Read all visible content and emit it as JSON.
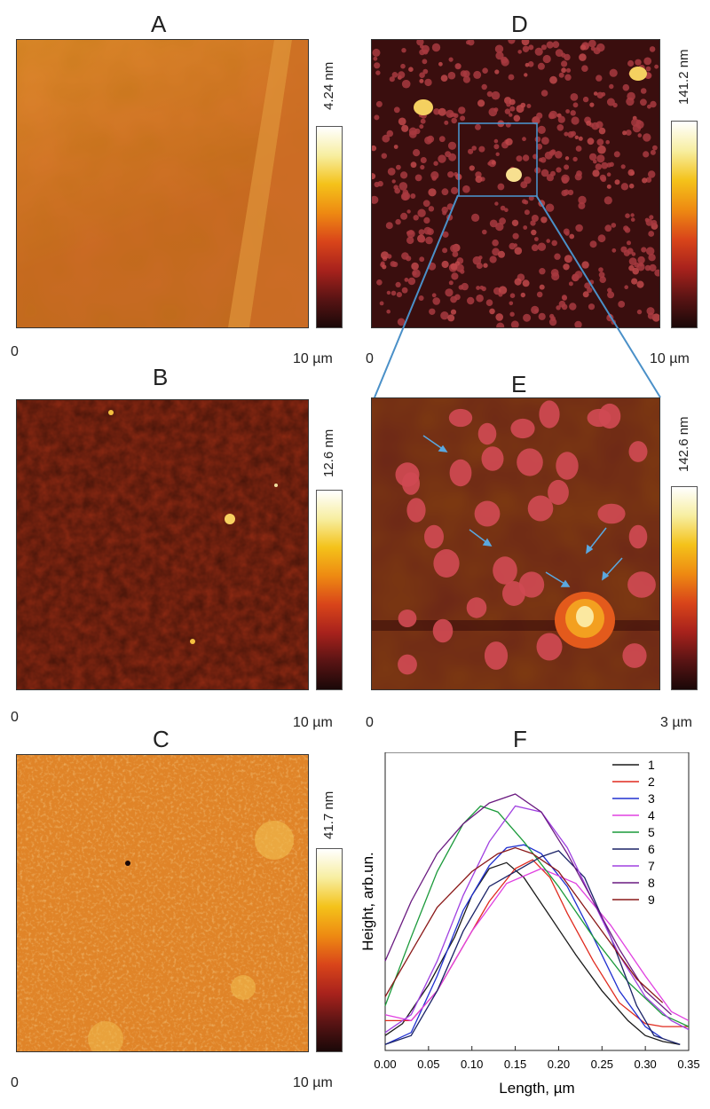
{
  "panels": {
    "a": {
      "letter": "A",
      "scale_label": "4.24 nm",
      "x_start": "0",
      "x_end": "10 µm"
    },
    "b": {
      "letter": "B",
      "scale_label": "12.6 nm",
      "x_start": "0",
      "x_end": "10 µm"
    },
    "c": {
      "letter": "C",
      "scale_label": "41.7 nm",
      "x_start": "0",
      "x_end": "10 µm"
    },
    "d": {
      "letter": "D",
      "scale_label": "141.2 nm",
      "x_start": "0",
      "x_end": "10 µm"
    },
    "e": {
      "letter": "E",
      "scale_label": "142.6 nm",
      "x_start": "0",
      "x_end": "3 µm"
    },
    "f": {
      "letter": "F"
    }
  },
  "colors": {
    "inset_lines": "#4a90c8",
    "colormap": [
      "#1a0808",
      "#5a1414",
      "#a8221c",
      "#d9451a",
      "#ee8a12",
      "#f4c21a",
      "#f7eea0",
      "#ffffff"
    ]
  },
  "chart_data": {
    "type": "line",
    "xlabel": "Length, µm",
    "ylabel": "Height, arb.un.",
    "xlim": [
      0,
      0.35
    ],
    "x_ticks": [
      "0.00",
      "0.05",
      "0.10",
      "0.15",
      "0.20",
      "0.25",
      "0.30",
      "0.35"
    ],
    "y_unit": "arbitrary",
    "legend_position": "top-right",
    "series": [
      {
        "name": "1",
        "color": "#1a1a1a",
        "x": [
          0.0,
          0.02,
          0.05,
          0.08,
          0.1,
          0.12,
          0.14,
          0.16,
          0.19,
          0.22,
          0.25,
          0.28,
          0.3,
          0.32,
          0.34
        ],
        "y": [
          0.05,
          0.09,
          0.22,
          0.38,
          0.52,
          0.61,
          0.63,
          0.58,
          0.45,
          0.32,
          0.2,
          0.1,
          0.05,
          0.03,
          0.02
        ]
      },
      {
        "name": "2",
        "color": "#e02a1e",
        "x": [
          0.0,
          0.03,
          0.06,
          0.09,
          0.12,
          0.15,
          0.17,
          0.19,
          0.21,
          0.24,
          0.27,
          0.3,
          0.32,
          0.35
        ],
        "y": [
          0.1,
          0.1,
          0.2,
          0.35,
          0.5,
          0.61,
          0.64,
          0.58,
          0.46,
          0.3,
          0.16,
          0.09,
          0.08,
          0.08
        ]
      },
      {
        "name": "3",
        "color": "#2030d0",
        "x": [
          0.0,
          0.03,
          0.06,
          0.09,
          0.12,
          0.14,
          0.16,
          0.18,
          0.21,
          0.24,
          0.27,
          0.3,
          0.32
        ],
        "y": [
          0.02,
          0.06,
          0.25,
          0.47,
          0.62,
          0.68,
          0.69,
          0.66,
          0.55,
          0.38,
          0.2,
          0.08,
          0.04
        ]
      },
      {
        "name": "4",
        "color": "#e040e0",
        "x": [
          0.0,
          0.03,
          0.06,
          0.1,
          0.14,
          0.18,
          0.22,
          0.26,
          0.3,
          0.33,
          0.35
        ],
        "y": [
          0.12,
          0.1,
          0.2,
          0.4,
          0.56,
          0.61,
          0.56,
          0.42,
          0.25,
          0.13,
          0.1
        ]
      },
      {
        "name": "5",
        "color": "#1a9a3a",
        "x": [
          0.0,
          0.03,
          0.06,
          0.09,
          0.11,
          0.13,
          0.16,
          0.2,
          0.24,
          0.28,
          0.32,
          0.35
        ],
        "y": [
          0.15,
          0.38,
          0.6,
          0.76,
          0.82,
          0.8,
          0.7,
          0.55,
          0.38,
          0.23,
          0.12,
          0.08
        ]
      },
      {
        "name": "6",
        "color": "#1a2266",
        "x": [
          0.0,
          0.03,
          0.06,
          0.09,
          0.12,
          0.15,
          0.18,
          0.2,
          0.23,
          0.26,
          0.29,
          0.31,
          0.34
        ],
        "y": [
          0.02,
          0.05,
          0.2,
          0.4,
          0.55,
          0.6,
          0.65,
          0.67,
          0.58,
          0.38,
          0.15,
          0.05,
          0.02
        ]
      },
      {
        "name": "7",
        "color": "#a040e0",
        "x": [
          0.0,
          0.03,
          0.06,
          0.09,
          0.12,
          0.15,
          0.18,
          0.21,
          0.24,
          0.27,
          0.3,
          0.33,
          0.35
        ],
        "y": [
          0.06,
          0.12,
          0.3,
          0.52,
          0.7,
          0.82,
          0.8,
          0.68,
          0.5,
          0.32,
          0.18,
          0.1,
          0.07
        ]
      },
      {
        "name": "8",
        "color": "#6a1a80",
        "x": [
          0.0,
          0.03,
          0.06,
          0.09,
          0.12,
          0.15,
          0.18,
          0.21,
          0.24,
          0.27,
          0.3,
          0.33
        ],
        "y": [
          0.3,
          0.5,
          0.66,
          0.76,
          0.83,
          0.86,
          0.8,
          0.66,
          0.5,
          0.34,
          0.2,
          0.12
        ]
      },
      {
        "name": "9",
        "color": "#8a1818",
        "x": [
          0.0,
          0.03,
          0.06,
          0.1,
          0.13,
          0.15,
          0.17,
          0.2,
          0.23,
          0.26,
          0.29,
          0.32
        ],
        "y": [
          0.18,
          0.33,
          0.48,
          0.6,
          0.66,
          0.68,
          0.66,
          0.6,
          0.48,
          0.36,
          0.24,
          0.16
        ]
      }
    ]
  }
}
